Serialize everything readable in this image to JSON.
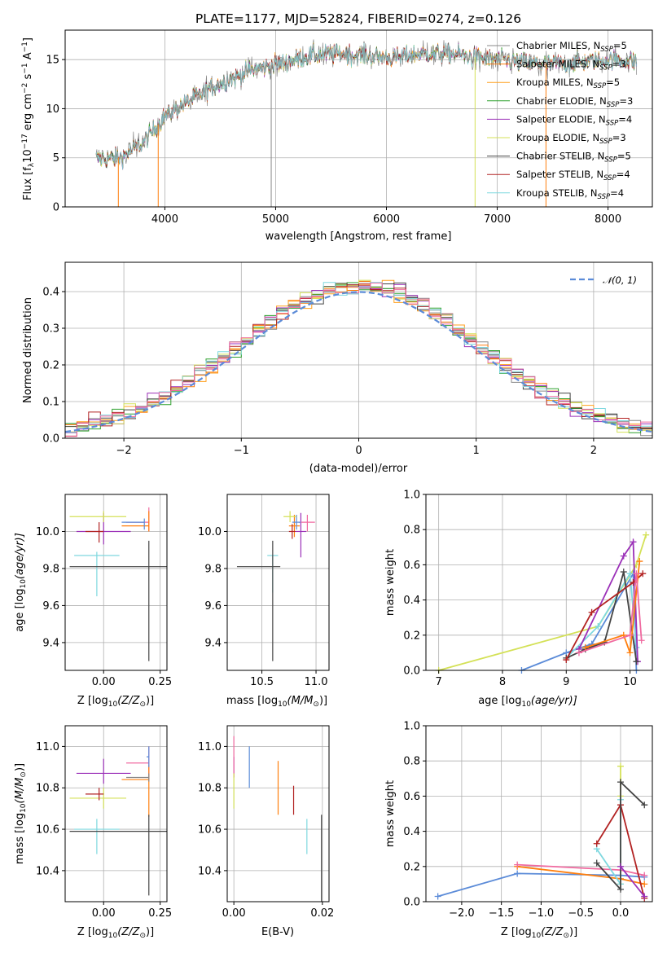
{
  "colors": {
    "Chabrier MILES": "#888888",
    "Salpeter MILES": "#ff7f0e",
    "Kroupa MILES": "#ff9f1c",
    "Chabrier ELODIE": "#2ca02c",
    "Salpeter ELODIE": "#9b30b8",
    "Kroupa ELODIE": "#d4e157",
    "Chabrier STELIB": "#444444",
    "Salpeter STELIB": "#b22222",
    "Kroupa STELIB": "#7fd8df",
    "normal": "#5b8bd8",
    "pink": "#f06aa0",
    "blue": "#5b8bd8"
  },
  "chart_data": [
    {
      "id": "spectrum",
      "type": "line",
      "title": "PLATE=1177, MJD=52824, FIBERID=0274, z=0.126",
      "xlabel": "wavelength [Angstrom, rest frame]",
      "ylabel_main": "Flux [f",
      "ylabel_sub": "λ",
      "ylabel_rest": "10",
      "ylabel_exp": "−17",
      "ylabel_units": " erg cm",
      "ylabel_exp2": "−2",
      "ylabel_units2": " s",
      "ylabel_exp3": "−1",
      "ylabel_units3": " A",
      "ylabel_exp4": "−1",
      "ylabel_end": "]",
      "xlim": [
        3100,
        8400
      ],
      "ylim": [
        0,
        18
      ],
      "xticks": [
        4000,
        5000,
        6000,
        7000,
        8000
      ],
      "yticks": [
        0,
        5,
        10,
        15
      ],
      "data_range": [
        3380,
        8260
      ],
      "legend_position": "upper-right",
      "legend": [
        {
          "name": "Chabrier MILES, N",
          "sub": "SSP",
          "tail": "=5",
          "color": "#888888"
        },
        {
          "name": "Salpeter MILES, N",
          "sub": "SSP",
          "tail": "=3",
          "color": "#ff7f0e"
        },
        {
          "name": "Kroupa MILES, N",
          "sub": "SSP",
          "tail": "=5",
          "color": "#ff9f1c"
        },
        {
          "name": "Chabrier ELODIE, N",
          "sub": "SSP",
          "tail": "=3",
          "color": "#2ca02c"
        },
        {
          "name": "Salpeter ELODIE, N",
          "sub": "SSP",
          "tail": "=4",
          "color": "#9b30b8"
        },
        {
          "name": "Kroupa ELODIE, N",
          "sub": "SSP",
          "tail": "=3",
          "color": "#d4e157"
        },
        {
          "name": "Chabrier STELIB, N",
          "sub": "SSP",
          "tail": "=5",
          "color": "#444444"
        },
        {
          "name": "Salpeter STELIB, N",
          "sub": "SSP",
          "tail": "=4",
          "color": "#b22222"
        },
        {
          "name": "Kroupa STELIB, N",
          "sub": "SSP",
          "tail": "=4",
          "color": "#7fd8df"
        }
      ],
      "continuum": [
        [
          3380,
          4.9
        ],
        [
          3600,
          5.0
        ],
        [
          3800,
          6.5
        ],
        [
          4000,
          9.2
        ],
        [
          4200,
          10.7
        ],
        [
          4500,
          12.6
        ],
        [
          4800,
          14.0
        ],
        [
          5000,
          14.5
        ],
        [
          5300,
          15.4
        ],
        [
          5600,
          15.6
        ],
        [
          5900,
          15.3
        ],
        [
          6100,
          15.2
        ],
        [
          6300,
          15.6
        ],
        [
          6600,
          15.6
        ],
        [
          6900,
          15.1
        ],
        [
          7200,
          14.7
        ],
        [
          7500,
          14.5
        ],
        [
          7800,
          14.8
        ],
        [
          8000,
          15.0
        ],
        [
          8260,
          14.8
        ]
      ],
      "spikes": [
        [
          4960,
          0.0
        ],
        [
          3940,
          0.0
        ],
        [
          6800,
          0.0
        ],
        [
          7440,
          0.0
        ],
        [
          3580,
          0.0
        ]
      ]
    },
    {
      "id": "residuals",
      "type": "histogram",
      "xlabel": "(data-model)/error",
      "ylabel": "Normed distribution",
      "xlim": [
        -2.5,
        2.5
      ],
      "ylim": [
        0,
        0.48
      ],
      "xticks": [
        -2,
        -1,
        0,
        1,
        2
      ],
      "xticklabels": [
        "−2",
        "−1",
        "0",
        "1",
        "2"
      ],
      "yticks": [
        0.0,
        0.1,
        0.2,
        0.3,
        0.4
      ],
      "yticklabels": [
        "0.0",
        "0.1",
        "0.2",
        "0.3",
        "0.4"
      ],
      "legend": {
        "text": "𝒩(0, 1)",
        "position": "upper-right"
      },
      "bin_width": 0.1
    },
    {
      "id": "age_vs_Z",
      "type": "errorbar",
      "xlabel": "Z [log",
      "xlabel_sub": "10",
      "xlabel_rest": "(Z/Z",
      "xlabel_sub2": "⊙",
      "xlabel_end": ")]",
      "ylabel": "age  [log",
      "ylabel_sub": "10",
      "ylabel_rest": "(age/yr)]",
      "xlim": [
        -0.17,
        0.28
      ],
      "ylim": [
        9.25,
        10.2
      ],
      "xticks": [
        0.0,
        0.25
      ],
      "xticklabels": [
        "0.00",
        "0.25"
      ],
      "yticks": [
        9.4,
        9.6,
        9.8,
        10.0
      ],
      "yticklabels": [
        "9.4",
        "9.6",
        "9.8",
        "10.0"
      ],
      "points": [
        {
          "x": 0.0,
          "y": 10.0,
          "xerr": [
            0.12,
            0.12
          ],
          "yerr": [
            0.07,
            0.1
          ],
          "color": "#9b30b8"
        },
        {
          "x": 0.2,
          "y": 10.05,
          "xerr": [
            0.1,
            0.0
          ],
          "yerr": [
            0.05,
            0.08
          ],
          "color": "#f06aa0"
        },
        {
          "x": 0.2,
          "y": 10.03,
          "xerr": [
            0.12,
            0.0
          ],
          "yerr": [
            0.03,
            0.08
          ],
          "color": "#ff7f0e"
        },
        {
          "x": 0.18,
          "y": 10.05,
          "xerr": [
            0.1,
            0.0
          ],
          "yerr": [
            0.04,
            0.02
          ],
          "color": "#5b8bd8"
        },
        {
          "x": 0.0,
          "y": 10.08,
          "xerr": [
            0.15,
            0.1
          ],
          "yerr": [
            0.03,
            0.03
          ],
          "color": "#d4e157"
        },
        {
          "x": -0.02,
          "y": 10.0,
          "xerr": [
            0.06,
            0.02
          ],
          "yerr": [
            0.06,
            0.05
          ],
          "color": "#b22222"
        },
        {
          "x": -0.03,
          "y": 9.87,
          "xerr": [
            0.1,
            0.1
          ],
          "yerr": [
            0.22,
            0.02
          ],
          "color": "#7fd8df"
        },
        {
          "x": 0.2,
          "y": 9.81,
          "xerr": [
            0.35,
            0.08
          ],
          "yerr": [
            0.51,
            0.14
          ],
          "color": "#444444"
        }
      ]
    },
    {
      "id": "age_vs_mass",
      "type": "errorbar",
      "xlabel": "mass [log",
      "xlabel_sub": "10",
      "xlabel_rest": "(M/M",
      "xlabel_sub2": "⊙",
      "xlabel_end": ")]",
      "xlim": [
        10.18,
        11.12
      ],
      "ylim": [
        9.25,
        10.2
      ],
      "xticks": [
        10.5,
        11.0
      ],
      "xticklabels": [
        "10.5",
        "11.0"
      ],
      "yticks": [
        9.4,
        9.6,
        9.8,
        10.0
      ],
      "yticklabels": [
        "9.4",
        "9.6",
        "9.8",
        "10.0"
      ],
      "points": [
        {
          "x": 10.86,
          "y": 10.0,
          "xerr": [
            0.05,
            0.05
          ],
          "yerr": [
            0.14,
            0.1
          ],
          "color": "#9b30b8"
        },
        {
          "x": 10.92,
          "y": 10.05,
          "xerr": [
            0.08,
            0.07
          ],
          "yerr": [
            0.05,
            0.04
          ],
          "color": "#f06aa0"
        },
        {
          "x": 10.8,
          "y": 10.03,
          "xerr": [
            0.05,
            0.05
          ],
          "yerr": [
            0.06,
            0.06
          ],
          "color": "#ff7f0e"
        },
        {
          "x": 10.82,
          "y": 10.05,
          "xerr": [
            0.04,
            0.04
          ],
          "yerr": [
            0.04,
            0.04
          ],
          "color": "#5b8bd8"
        },
        {
          "x": 10.76,
          "y": 10.08,
          "xerr": [
            0.06,
            0.06
          ],
          "yerr": [
            0.03,
            0.03
          ],
          "color": "#d4e157"
        },
        {
          "x": 10.78,
          "y": 10.0,
          "xerr": [
            0.03,
            0.03
          ],
          "yerr": [
            0.04,
            0.04
          ],
          "color": "#b22222"
        },
        {
          "x": 10.6,
          "y": 9.87,
          "xerr": [
            0.05,
            0.05
          ],
          "yerr": [
            0.2,
            0.0
          ],
          "color": "#7fd8df"
        },
        {
          "x": 10.6,
          "y": 9.81,
          "xerr": [
            0.33,
            0.07
          ],
          "yerr": [
            0.51,
            0.14
          ],
          "color": "#444444"
        }
      ]
    },
    {
      "id": "massweight_vs_age",
      "type": "line",
      "xlabel": "age  [log",
      "xlabel_sub": "10",
      "xlabel_rest": "(age/yr)]",
      "ylabel": "mass weight",
      "xlim": [
        6.8,
        10.35
      ],
      "ylim": [
        0,
        1.0
      ],
      "xticks": [
        7,
        8,
        9,
        10
      ],
      "xticklabels": [
        "7",
        "8",
        "9",
        "10"
      ],
      "yticks": [
        0.0,
        0.2,
        0.4,
        0.6,
        0.8,
        1.0
      ],
      "yticklabels": [
        "0.0",
        "0.2",
        "0.4",
        "0.6",
        "0.8",
        "1.0"
      ],
      "series": [
        {
          "color": "#d4e157",
          "x": [
            7.0,
            9.5,
            10.1,
            10.25
          ],
          "y": [
            0.0,
            0.25,
            0.6,
            0.77
          ]
        },
        {
          "color": "#5b8bd8",
          "x": [
            8.3,
            9.0,
            9.4,
            10.05,
            10.1
          ],
          "y": [
            0.0,
            0.1,
            0.15,
            0.55,
            0.0
          ]
        },
        {
          "color": "#7fd8df",
          "x": [
            9.0,
            9.5,
            10.0,
            10.1
          ],
          "y": [
            0.07,
            0.25,
            0.55,
            0.13
          ]
        },
        {
          "color": "#9b30b8",
          "x": [
            9.2,
            9.9,
            10.05,
            10.12
          ],
          "y": [
            0.12,
            0.65,
            0.73,
            0.05
          ]
        },
        {
          "color": "#444444",
          "x": [
            9.0,
            9.3,
            9.6,
            9.9,
            10.1
          ],
          "y": [
            0.07,
            0.12,
            0.16,
            0.56,
            0.05
          ]
        },
        {
          "color": "#b22222",
          "x": [
            9.0,
            9.4,
            10.05,
            10.2
          ],
          "y": [
            0.06,
            0.33,
            0.5,
            0.55
          ]
        },
        {
          "color": "#ff7f0e",
          "x": [
            9.3,
            9.9,
            10.0,
            10.15
          ],
          "y": [
            0.13,
            0.2,
            0.1,
            0.62
          ]
        },
        {
          "color": "#f06aa0",
          "x": [
            9.2,
            10.0,
            10.1,
            10.18
          ],
          "y": [
            0.1,
            0.2,
            0.55,
            0.17
          ]
        }
      ]
    },
    {
      "id": "mass_vs_Z",
      "type": "errorbar",
      "xlabel": "Z [log",
      "xlabel_sub": "10",
      "xlabel_rest": "(Z/Z",
      "xlabel_sub2": "⊙",
      "xlabel_end": ")]",
      "ylabel": "mass [log",
      "ylabel_sub": "10",
      "ylabel_rest": "(M/M",
      "ylabel_sub2": "⊙",
      "ylabel_end": ")]",
      "xlim": [
        -0.17,
        0.28
      ],
      "ylim": [
        10.25,
        11.1
      ],
      "xticks": [
        0.0,
        0.25
      ],
      "xticklabels": [
        "0.00",
        "0.25"
      ],
      "yticks": [
        10.4,
        10.6,
        10.8,
        11.0
      ],
      "yticklabels": [
        "10.4",
        "10.6",
        "10.8",
        "11.0"
      ],
      "points": [
        {
          "x": 0.0,
          "y": 10.87,
          "xerr": [
            0.12,
            0.12
          ],
          "yerr": [
            0.05,
            0.07
          ],
          "color": "#9b30b8"
        },
        {
          "x": 0.2,
          "y": 10.92,
          "xerr": [
            0.1,
            0.0
          ],
          "yerr": [
            0.08,
            0.08
          ],
          "color": "#f06aa0"
        },
        {
          "x": 0.2,
          "y": 10.84,
          "xerr": [
            0.12,
            0.0
          ],
          "yerr": [
            0.18,
            0.07
          ],
          "color": "#ff7f0e"
        },
        {
          "x": 0.2,
          "y": 10.95,
          "xerr": [
            0.01,
            0.0
          ],
          "yerr": [
            0.05,
            0.05
          ],
          "color": "#5b8bd8"
        },
        {
          "x": 0.0,
          "y": 10.75,
          "xerr": [
            0.15,
            0.1
          ],
          "yerr": [
            0.05,
            0.05
          ],
          "color": "#d4e157"
        },
        {
          "x": -0.02,
          "y": 10.77,
          "xerr": [
            0.06,
            0.02
          ],
          "yerr": [
            0.03,
            0.03
          ],
          "color": "#b22222"
        },
        {
          "x": -0.03,
          "y": 10.6,
          "xerr": [
            0.1,
            0.1
          ],
          "yerr": [
            0.12,
            0.05
          ],
          "color": "#7fd8df"
        },
        {
          "x": 0.2,
          "y": 10.59,
          "xerr": [
            0.35,
            0.08
          ],
          "yerr": [
            0.31,
            0.08
          ],
          "color": "#444444"
        },
        {
          "x": 0.2,
          "y": 10.85,
          "xerr": [
            0.1,
            0.0
          ],
          "yerr": [
            0.02,
            0.02
          ],
          "color": "#888888"
        }
      ]
    },
    {
      "id": "mass_vs_ebv",
      "type": "errorbar",
      "xlabel": "E(B-V)",
      "xlim": [
        -0.0015,
        0.0215
      ],
      "ylim": [
        10.25,
        11.1
      ],
      "xticks": [
        0.0,
        0.02
      ],
      "xticklabels": [
        "0.00",
        "0.02"
      ],
      "yticks": [
        10.4,
        10.6,
        10.8,
        11.0
      ],
      "yticklabels": [
        "10.4",
        "10.6",
        "10.8",
        "11.0"
      ],
      "points": [
        {
          "x": 0.0,
          "y": 10.9,
          "xerr": [
            0,
            0
          ],
          "yerr": [
            0.05,
            0.05
          ],
          "color": "#9b30b8"
        },
        {
          "x": 0.0,
          "y": 10.95,
          "xerr": [
            0,
            0
          ],
          "yerr": [
            0.1,
            0.1
          ],
          "color": "#f06aa0"
        },
        {
          "x": 0.0,
          "y": 10.8,
          "xerr": [
            0,
            0
          ],
          "yerr": [
            0.1,
            0.07
          ],
          "color": "#d4e157"
        },
        {
          "x": 0.0035,
          "y": 10.9,
          "xerr": [
            0,
            0
          ],
          "yerr": [
            0.1,
            0.1
          ],
          "color": "#5b8bd8"
        },
        {
          "x": 0.01,
          "y": 10.83,
          "xerr": [
            0,
            0
          ],
          "yerr": [
            0.16,
            0.1
          ],
          "color": "#ff7f0e"
        },
        {
          "x": 0.0135,
          "y": 10.74,
          "xerr": [
            0,
            0
          ],
          "yerr": [
            0.07,
            0.07
          ],
          "color": "#b22222"
        },
        {
          "x": 0.0165,
          "y": 10.58,
          "xerr": [
            0,
            0
          ],
          "yerr": [
            0.1,
            0.07
          ],
          "color": "#7fd8df"
        },
        {
          "x": 0.0198,
          "y": 10.52,
          "xerr": [
            0,
            0
          ],
          "yerr": [
            0.27,
            0.15
          ],
          "color": "#444444"
        }
      ]
    },
    {
      "id": "massweight_vs_Z",
      "type": "line",
      "xlabel": "Z [log",
      "xlabel_sub": "10",
      "xlabel_rest": "(Z/Z",
      "xlabel_sub2": "⊙",
      "xlabel_end": ")]",
      "ylabel": "mass weight",
      "xlim": [
        -2.45,
        0.4
      ],
      "ylim": [
        0,
        1.0
      ],
      "xticks": [
        -2.0,
        -1.5,
        -1.0,
        -0.5,
        0.0
      ],
      "xticklabels": [
        "−2.0",
        "−1.5",
        "−1.0",
        "−0.5",
        "0.0"
      ],
      "yticks": [
        0.0,
        0.2,
        0.4,
        0.6,
        0.8,
        1.0
      ],
      "yticklabels": [
        "0.0",
        "0.2",
        "0.4",
        "0.6",
        "0.8",
        "1.0"
      ],
      "series": [
        {
          "color": "#5b8bd8",
          "x": [
            -2.3,
            -1.3,
            0.0,
            0.3
          ],
          "y": [
            0.03,
            0.16,
            0.15,
            0.14
          ]
        },
        {
          "color": "#ff7f0e",
          "x": [
            -1.3,
            0.0,
            0.3
          ],
          "y": [
            0.2,
            0.13,
            0.1
          ]
        },
        {
          "color": "#f06aa0",
          "x": [
            -1.3,
            0.0,
            0.3
          ],
          "y": [
            0.21,
            0.18,
            0.15
          ]
        },
        {
          "color": "#d4e157",
          "x": [
            0.0,
            0.0,
            0.0
          ],
          "y": [
            0.77,
            0.1,
            0.6
          ]
        },
        {
          "color": "#7fd8df",
          "x": [
            -0.3,
            0.0,
            0.0
          ],
          "y": [
            0.3,
            0.1,
            0.58
          ]
        },
        {
          "color": "#b22222",
          "x": [
            -0.3,
            0.0,
            0.3
          ],
          "y": [
            0.33,
            0.55,
            0.02
          ]
        },
        {
          "color": "#444444",
          "x": [
            -0.3,
            0.0,
            0.0,
            0.3
          ],
          "y": [
            0.22,
            0.07,
            0.68,
            0.55
          ]
        },
        {
          "color": "#9b30b8",
          "x": [
            0.0,
            0.3
          ],
          "y": [
            0.2,
            0.03
          ]
        }
      ]
    }
  ]
}
